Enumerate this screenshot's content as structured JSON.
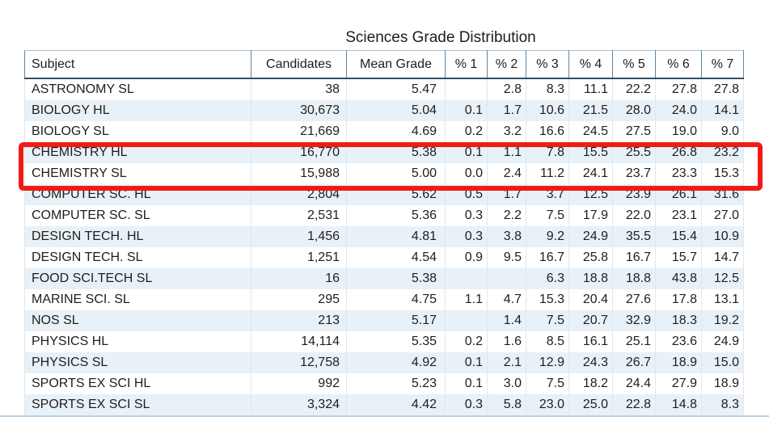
{
  "title": "Sciences Grade Distribution",
  "highlight": {
    "color": "#ee1c14",
    "highlighted_subjects": [
      "CHEMISTRY HL",
      "CHEMISTRY SL"
    ]
  },
  "chart_data": {
    "type": "table",
    "title": "Sciences Grade Distribution",
    "columns": [
      "Subject",
      "Candidates",
      "Mean Grade",
      "% 1",
      "% 2",
      "% 3",
      "% 4",
      "% 5",
      "% 6",
      "% 7"
    ],
    "rows": [
      [
        "ASTRONOMY SL",
        "38",
        "5.47",
        "",
        "2.8",
        "8.3",
        "11.1",
        "22.2",
        "27.8",
        "27.8"
      ],
      [
        "BIOLOGY HL",
        "30,673",
        "5.04",
        "0.1",
        "1.7",
        "10.6",
        "21.5",
        "28.0",
        "24.0",
        "14.1"
      ],
      [
        "BIOLOGY SL",
        "21,669",
        "4.69",
        "0.2",
        "3.2",
        "16.6",
        "24.5",
        "27.5",
        "19.0",
        "9.0"
      ],
      [
        "CHEMISTRY HL",
        "16,770",
        "5.38",
        "0.1",
        "1.1",
        "7.8",
        "15.5",
        "25.5",
        "26.8",
        "23.2"
      ],
      [
        "CHEMISTRY SL",
        "15,988",
        "5.00",
        "0.0",
        "2.4",
        "11.2",
        "24.1",
        "23.7",
        "23.3",
        "15.3"
      ],
      [
        "COMPUTER SC. HL",
        "2,804",
        "5.62",
        "0.5",
        "1.7",
        "3.7",
        "12.5",
        "23.9",
        "26.1",
        "31.6"
      ],
      [
        "COMPUTER SC. SL",
        "2,531",
        "5.36",
        "0.3",
        "2.2",
        "7.5",
        "17.9",
        "22.0",
        "23.1",
        "27.0"
      ],
      [
        "DESIGN TECH. HL",
        "1,456",
        "4.81",
        "0.3",
        "3.8",
        "9.2",
        "24.9",
        "35.5",
        "15.4",
        "10.9"
      ],
      [
        "DESIGN TECH. SL",
        "1,251",
        "4.54",
        "0.9",
        "9.5",
        "16.7",
        "25.8",
        "16.7",
        "15.7",
        "14.7"
      ],
      [
        "FOOD SCI.TECH SL",
        "16",
        "5.38",
        "",
        "",
        "6.3",
        "18.8",
        "18.8",
        "43.8",
        "12.5"
      ],
      [
        "MARINE SCI. SL",
        "295",
        "4.75",
        "1.1",
        "4.7",
        "15.3",
        "20.4",
        "27.6",
        "17.8",
        "13.1"
      ],
      [
        "NOS SL",
        "213",
        "5.17",
        "",
        "1.4",
        "7.5",
        "20.7",
        "32.9",
        "18.3",
        "19.2"
      ],
      [
        "PHYSICS HL",
        "14,114",
        "5.35",
        "0.2",
        "1.6",
        "8.5",
        "16.1",
        "25.1",
        "23.6",
        "24.9"
      ],
      [
        "PHYSICS SL",
        "12,758",
        "4.92",
        "0.1",
        "2.1",
        "12.9",
        "24.3",
        "26.7",
        "18.9",
        "15.0"
      ],
      [
        "SPORTS EX SCI HL",
        "992",
        "5.23",
        "0.1",
        "3.0",
        "7.5",
        "18.2",
        "24.4",
        "27.9",
        "18.9"
      ],
      [
        "SPORTS EX SCI SL",
        "3,324",
        "4.42",
        "0.3",
        "5.8",
        "23.0",
        "25.0",
        "22.8",
        "14.8",
        "8.3"
      ]
    ]
  }
}
